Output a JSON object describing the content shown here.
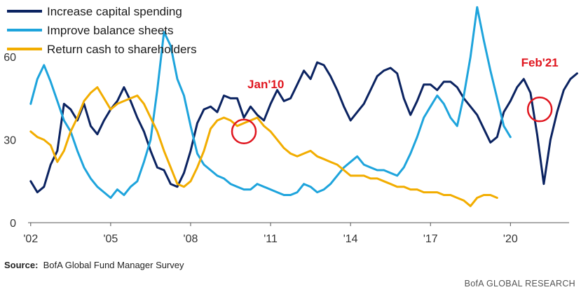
{
  "chart_data": {
    "type": "line",
    "x_start": 2002.0,
    "x_step": 0.25,
    "xlim": [
      2001.9,
      2022.2
    ],
    "ylim": [
      0,
      75
    ],
    "x_ticks": [
      2002,
      2005,
      2008,
      2011,
      2014,
      2017,
      2020
    ],
    "x_tick_labels": [
      "'02",
      "'05",
      "'08",
      "'11",
      "'14",
      "'17",
      "'20"
    ],
    "y_ticks": [
      0,
      30,
      60
    ],
    "y_tick_labels": [
      "0",
      "30",
      "60"
    ],
    "grid": false,
    "legend_position": "top-left",
    "series": [
      {
        "name": "Increase capital spending",
        "color": "#0b2361",
        "values": [
          15,
          11,
          13,
          21,
          26,
          43,
          41,
          37,
          43,
          35,
          32,
          37,
          41,
          44,
          49,
          44,
          38,
          33,
          26,
          20,
          19,
          14,
          13,
          18,
          26,
          36,
          41,
          42,
          40,
          46,
          45,
          45,
          38,
          42,
          39,
          37,
          43,
          48,
          44,
          45,
          50,
          55,
          52,
          58,
          57,
          53,
          48,
          42,
          37,
          40,
          43,
          48,
          53,
          55,
          56,
          54,
          45,
          39,
          44,
          50,
          50,
          48,
          51,
          51,
          49,
          45,
          42,
          39,
          34,
          29,
          31,
          40,
          44,
          49,
          52,
          47,
          32,
          14,
          30,
          40,
          48,
          52,
          54
        ]
      },
      {
        "name": "Improve balance sheets",
        "color": "#1ea4dc",
        "values": [
          43,
          52,
          57,
          51,
          44,
          37,
          33,
          26,
          20,
          16,
          13,
          11,
          9,
          12,
          10,
          13,
          15,
          22,
          30,
          48,
          69,
          64,
          52,
          46,
          35,
          25,
          21,
          19,
          17,
          16,
          14,
          13,
          12,
          12,
          14,
          13,
          12,
          11,
          10,
          10,
          11,
          14,
          13,
          11,
          12,
          14,
          17,
          20,
          22,
          24,
          21,
          20,
          19,
          19,
          18,
          17,
          20,
          25,
          31,
          38,
          42,
          46,
          43,
          38,
          35,
          46,
          60,
          78,
          66,
          55,
          45,
          35,
          31
        ]
      },
      {
        "name": "Return cash to shareholders",
        "color": "#f2ad00",
        "values": [
          33,
          31,
          30,
          28,
          22,
          26,
          33,
          38,
          44,
          47,
          49,
          45,
          41,
          43,
          44,
          45,
          46,
          43,
          38,
          33,
          26,
          20,
          14,
          13,
          15,
          20,
          26,
          34,
          37,
          38,
          37,
          35,
          36,
          37,
          38,
          35,
          33,
          30,
          27,
          25,
          24,
          25,
          26,
          24,
          23,
          22,
          21,
          19,
          17,
          17,
          17,
          16,
          16,
          15,
          14,
          13,
          13,
          12,
          12,
          11,
          11,
          11,
          10,
          10,
          9,
          8,
          6,
          9,
          10,
          10,
          9
        ]
      }
    ],
    "annotations": [
      {
        "label": "Jan'10",
        "x": 2010.0,
        "y": 33
      },
      {
        "label": "Feb'21",
        "x": 2021.1,
        "y": 41
      }
    ]
  },
  "footer": {
    "source_label": "Source:",
    "source_text": "BofA Global Fund Manager Survey",
    "brand": "BofA GLOBAL RESEARCH"
  }
}
